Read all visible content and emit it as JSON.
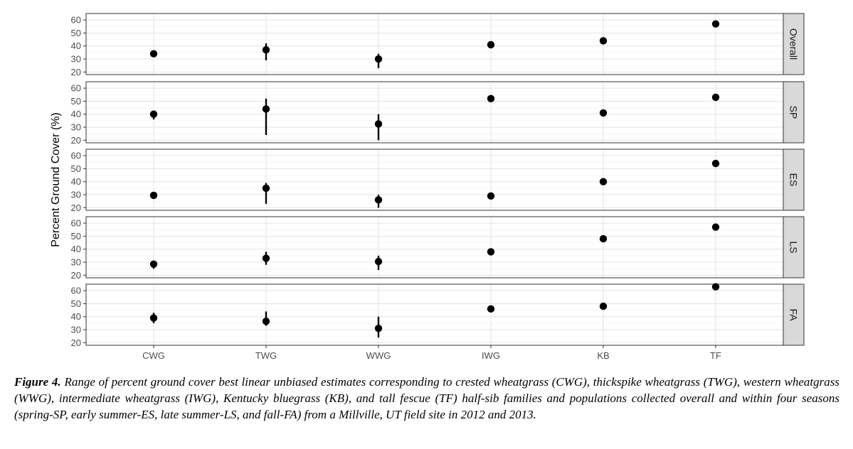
{
  "chart_data": {
    "type": "scatter",
    "ylabel": "Percent Ground Cover (%)",
    "xlabel": "",
    "categories": [
      "CWG",
      "TWG",
      "WWG",
      "IWG",
      "KB",
      "TF"
    ],
    "yticks": [
      20,
      30,
      40,
      50,
      60
    ],
    "ylim": [
      18,
      65
    ],
    "grid": true,
    "facet_strip_position": "right",
    "panels": [
      {
        "name": "Overall",
        "values": [
          34,
          37,
          30,
          41,
          44,
          57
        ],
        "ranges": [
          [
            32,
            35
          ],
          [
            29,
            42
          ],
          [
            23,
            34
          ],
          [
            40,
            42
          ],
          [
            43,
            45
          ],
          [
            56,
            58
          ]
        ]
      },
      {
        "name": "SP",
        "values": [
          40,
          44,
          32.5,
          52,
          41,
          53
        ],
        "ranges": [
          [
            36,
            42
          ],
          [
            24,
            52
          ],
          [
            20,
            40
          ],
          [
            51,
            53
          ],
          [
            40,
            42
          ],
          [
            52,
            54
          ]
        ]
      },
      {
        "name": "ES",
        "values": [
          29.5,
          35,
          26,
          29,
          40,
          54
        ],
        "ranges": [
          [
            27,
            31
          ],
          [
            23,
            39
          ],
          [
            20,
            30
          ],
          [
            28,
            30
          ],
          [
            39,
            41
          ],
          [
            53,
            55
          ]
        ]
      },
      {
        "name": "LS",
        "values": [
          28.5,
          33,
          30.5,
          38,
          48,
          57
        ],
        "ranges": [
          [
            25,
            31
          ],
          [
            28,
            38
          ],
          [
            24,
            35
          ],
          [
            37,
            39
          ],
          [
            47,
            49
          ],
          [
            56,
            58
          ]
        ]
      },
      {
        "name": "FA",
        "values": [
          39,
          36.5,
          31,
          46,
          48,
          63
        ],
        "ranges": [
          [
            35,
            43
          ],
          [
            33,
            44
          ],
          [
            24,
            40
          ],
          [
            45,
            47
          ],
          [
            46,
            49
          ],
          [
            62,
            64
          ]
        ]
      }
    ]
  },
  "caption": {
    "label": "Figure 4.",
    "text": "Range of percent ground cover best linear unbiased estimates corresponding to crested wheatgrass (CWG), thickspike wheatgrass (TWG), western wheatgrass (WWG), intermediate wheatgrass (IWG), Kentucky bluegrass (KB), and tall fescue (TF) half-sib families and populations collected overall and within four seasons (spring-SP, early summer-ES, late summer-LS, and fall-FA) from a Millville, UT field site in 2012 and 2013."
  }
}
